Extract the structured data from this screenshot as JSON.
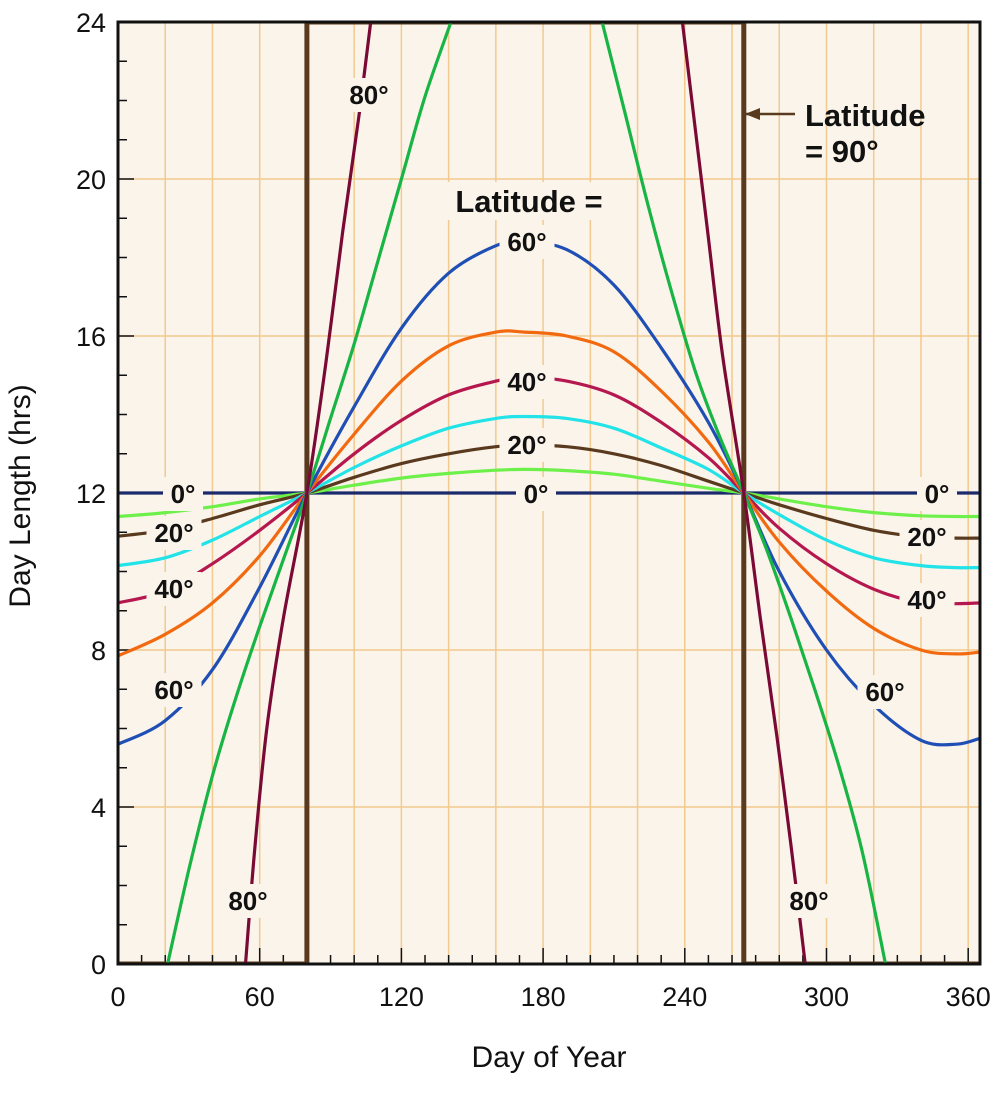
{
  "chart_data": {
    "type": "line",
    "title": "",
    "xlabel": "Day of Year",
    "ylabel": "Day Length (hrs)",
    "xlim": [
      0,
      365
    ],
    "ylim": [
      0,
      24
    ],
    "xticks": [
      "0",
      "60",
      "120",
      "180",
      "240",
      "300",
      "360"
    ],
    "yticks": [
      "0",
      "4",
      "8",
      "12",
      "16",
      "20",
      "24"
    ],
    "grid": true,
    "colors": {
      "background": "#fbf4ea",
      "grid": "#f2c98e",
      "frame": "#111111"
    },
    "series": [
      {
        "key": "lat0",
        "labels": [
          "0°",
          "0°",
          "0°"
        ],
        "color": "#1a2a6c",
        "points": [
          [
            0,
            12
          ],
          [
            365,
            12
          ]
        ]
      },
      {
        "key": "lat10",
        "labels": [],
        "color": "#6ef04a",
        "points": [
          [
            0,
            11.4
          ],
          [
            20,
            11.5
          ],
          [
            40,
            11.65
          ],
          [
            60,
            11.85
          ],
          [
            80,
            12.0
          ],
          [
            100,
            12.2
          ],
          [
            120,
            12.38
          ],
          [
            140,
            12.5
          ],
          [
            160,
            12.58
          ],
          [
            172,
            12.6
          ],
          [
            190,
            12.57
          ],
          [
            210,
            12.48
          ],
          [
            230,
            12.3
          ],
          [
            250,
            12.12
          ],
          [
            265,
            12.0
          ],
          [
            280,
            11.85
          ],
          [
            300,
            11.65
          ],
          [
            320,
            11.5
          ],
          [
            340,
            11.42
          ],
          [
            355,
            11.4
          ],
          [
            365,
            11.4
          ]
        ]
      },
      {
        "key": "lat20",
        "labels": [
          "20°",
          "20°",
          "20°"
        ],
        "color": "#5a3a1e",
        "points": [
          [
            0,
            10.9
          ],
          [
            20,
            11.05
          ],
          [
            40,
            11.35
          ],
          [
            60,
            11.7
          ],
          [
            80,
            12.0
          ],
          [
            100,
            12.4
          ],
          [
            120,
            12.75
          ],
          [
            140,
            13.0
          ],
          [
            160,
            13.18
          ],
          [
            172,
            13.22
          ],
          [
            190,
            13.18
          ],
          [
            210,
            13.0
          ],
          [
            230,
            12.7
          ],
          [
            250,
            12.3
          ],
          [
            265,
            12.0
          ],
          [
            280,
            11.7
          ],
          [
            300,
            11.35
          ],
          [
            320,
            11.05
          ],
          [
            340,
            10.88
          ],
          [
            355,
            10.85
          ],
          [
            365,
            10.85
          ]
        ]
      },
      {
        "key": "lat30",
        "labels": [],
        "color": "#22e3e8",
        "points": [
          [
            0,
            10.15
          ],
          [
            20,
            10.35
          ],
          [
            40,
            10.8
          ],
          [
            60,
            11.4
          ],
          [
            80,
            12.0
          ],
          [
            100,
            12.65
          ],
          [
            120,
            13.2
          ],
          [
            140,
            13.65
          ],
          [
            160,
            13.9
          ],
          [
            172,
            13.95
          ],
          [
            190,
            13.9
          ],
          [
            210,
            13.65
          ],
          [
            230,
            13.15
          ],
          [
            250,
            12.6
          ],
          [
            265,
            12.0
          ],
          [
            280,
            11.45
          ],
          [
            300,
            10.8
          ],
          [
            320,
            10.35
          ],
          [
            340,
            10.15
          ],
          [
            355,
            10.1
          ],
          [
            365,
            10.1
          ]
        ]
      },
      {
        "key": "lat40",
        "labels": [
          "40°",
          "40°",
          "40°"
        ],
        "color": "#b5174f",
        "points": [
          [
            0,
            9.2
          ],
          [
            20,
            9.5
          ],
          [
            40,
            10.2
          ],
          [
            60,
            11.05
          ],
          [
            80,
            12.0
          ],
          [
            100,
            13.0
          ],
          [
            120,
            13.85
          ],
          [
            140,
            14.5
          ],
          [
            160,
            14.85
          ],
          [
            172,
            14.95
          ],
          [
            190,
            14.85
          ],
          [
            210,
            14.5
          ],
          [
            230,
            13.8
          ],
          [
            250,
            12.9
          ],
          [
            265,
            12.0
          ],
          [
            280,
            11.1
          ],
          [
            300,
            10.2
          ],
          [
            320,
            9.55
          ],
          [
            340,
            9.2
          ],
          [
            355,
            9.18
          ],
          [
            365,
            9.2
          ]
        ]
      },
      {
        "key": "lat50",
        "labels": [],
        "color": "#f26a10",
        "points": [
          [
            0,
            7.85
          ],
          [
            20,
            8.4
          ],
          [
            40,
            9.2
          ],
          [
            60,
            10.4
          ],
          [
            80,
            12.0
          ],
          [
            100,
            13.5
          ],
          [
            120,
            14.85
          ],
          [
            140,
            15.75
          ],
          [
            160,
            16.1
          ],
          [
            172,
            16.1
          ],
          [
            190,
            16.0
          ],
          [
            210,
            15.6
          ],
          [
            230,
            14.6
          ],
          [
            250,
            13.3
          ],
          [
            265,
            12.0
          ],
          [
            280,
            10.75
          ],
          [
            300,
            9.5
          ],
          [
            320,
            8.55
          ],
          [
            340,
            8.0
          ],
          [
            355,
            7.9
          ],
          [
            365,
            7.95
          ]
        ]
      },
      {
        "key": "lat60",
        "labels": [
          "60°",
          "60°",
          "60°"
        ],
        "color": "#1f4fb5",
        "points": [
          [
            0,
            5.6
          ],
          [
            20,
            6.2
          ],
          [
            40,
            7.5
          ],
          [
            60,
            9.6
          ],
          [
            80,
            12.0
          ],
          [
            100,
            14.2
          ],
          [
            120,
            16.2
          ],
          [
            140,
            17.6
          ],
          [
            160,
            18.3
          ],
          [
            172,
            18.4
          ],
          [
            190,
            18.2
          ],
          [
            210,
            17.3
          ],
          [
            230,
            15.7
          ],
          [
            250,
            13.8
          ],
          [
            265,
            12.0
          ],
          [
            280,
            10.0
          ],
          [
            300,
            8.0
          ],
          [
            320,
            6.6
          ],
          [
            340,
            5.7
          ],
          [
            355,
            5.6
          ],
          [
            365,
            5.75
          ]
        ]
      },
      {
        "key": "lat70",
        "labels": [],
        "color": "#18b545",
        "points": [
          [
            21,
            0
          ],
          [
            30,
            2.4
          ],
          [
            40,
            4.8
          ],
          [
            50,
            6.8
          ],
          [
            60,
            8.6
          ],
          [
            70,
            10.3
          ],
          [
            80,
            12.0
          ],
          [
            90,
            13.9
          ],
          [
            100,
            15.8
          ],
          [
            110,
            17.9
          ],
          [
            120,
            20.0
          ],
          [
            130,
            22.1
          ],
          [
            141,
            24
          ]
        ]
      },
      {
        "key": "lat70-fall",
        "labels": [],
        "color": "#18b545",
        "points": [
          [
            205,
            24
          ],
          [
            215,
            21.6
          ],
          [
            225,
            19.2
          ],
          [
            235,
            17.0
          ],
          [
            245,
            15.0
          ],
          [
            255,
            13.4
          ],
          [
            265,
            12.0
          ],
          [
            275,
            10.5
          ],
          [
            285,
            8.8
          ],
          [
            295,
            7.0
          ],
          [
            305,
            5.1
          ],
          [
            315,
            2.9
          ],
          [
            325,
            0
          ]
        ]
      },
      {
        "key": "lat80",
        "labels": [
          "80°",
          "80°",
          "80°"
        ],
        "color": "#7a0a35",
        "points": [
          [
            54,
            0
          ],
          [
            58,
            3.0
          ],
          [
            63,
            6.0
          ],
          [
            70,
            8.8
          ],
          [
            80,
            12.0
          ],
          [
            88,
            15.3
          ],
          [
            95,
            18.6
          ],
          [
            102,
            21.6
          ],
          [
            107,
            24
          ]
        ]
      },
      {
        "key": "lat80-fall",
        "labels": [],
        "color": "#7a0a35",
        "points": [
          [
            239,
            24
          ],
          [
            244,
            21.5
          ],
          [
            250,
            18.5
          ],
          [
            256,
            15.5
          ],
          [
            265,
            12.0
          ],
          [
            272,
            8.8
          ],
          [
            279,
            5.8
          ],
          [
            285,
            3.0
          ],
          [
            291,
            0
          ]
        ]
      },
      {
        "key": "lat90",
        "labels": [],
        "color": "#5a3a1e",
        "points": [
          [
            0,
            0
          ],
          [
            80,
            0
          ],
          [
            80,
            24
          ],
          [
            265,
            24
          ],
          [
            265,
            0
          ],
          [
            365,
            0
          ]
        ]
      }
    ],
    "annotations": [
      {
        "key": "latitude-eq",
        "text": "Latitude ="
      },
      {
        "key": "latitude-90-line1",
        "text": "Latitude"
      },
      {
        "key": "latitude-90-line2",
        "text": "= 90°"
      }
    ]
  }
}
